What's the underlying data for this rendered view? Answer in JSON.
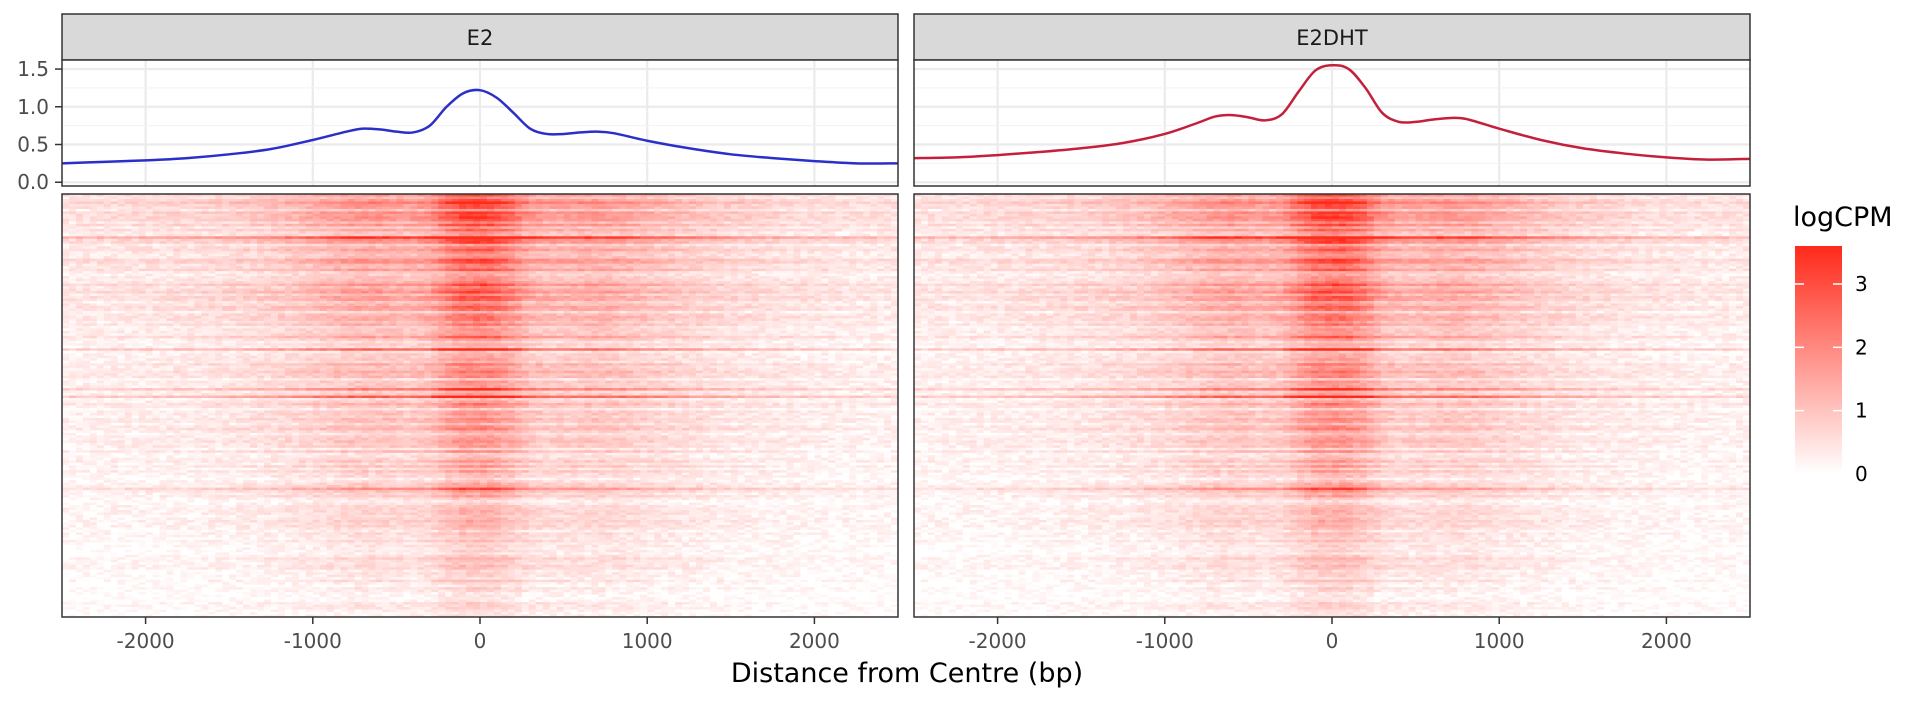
{
  "chart_data": {
    "type": "line",
    "panels": [
      {
        "label": "E2",
        "color": "#2b2fc9",
        "x": [
          -2500,
          -2250,
          -2000,
          -1750,
          -1500,
          -1250,
          -1000,
          -800,
          -700,
          -600,
          -500,
          -400,
          -300,
          -200,
          -100,
          0,
          100,
          200,
          300,
          400,
          500,
          600,
          700,
          800,
          1000,
          1250,
          1500,
          1750,
          2000,
          2250,
          2500
        ],
        "y": [
          0.25,
          0.27,
          0.29,
          0.32,
          0.37,
          0.44,
          0.56,
          0.67,
          0.71,
          0.7,
          0.67,
          0.66,
          0.75,
          1.0,
          1.18,
          1.22,
          1.12,
          0.92,
          0.71,
          0.64,
          0.64,
          0.66,
          0.67,
          0.65,
          0.55,
          0.45,
          0.37,
          0.32,
          0.28,
          0.25,
          0.25
        ]
      },
      {
        "label": "E2DHT",
        "color": "#c4203b",
        "x": [
          -2500,
          -2250,
          -2000,
          -1750,
          -1500,
          -1250,
          -1000,
          -800,
          -700,
          -600,
          -500,
          -400,
          -300,
          -200,
          -100,
          0,
          100,
          200,
          300,
          400,
          500,
          600,
          700,
          800,
          1000,
          1250,
          1500,
          1750,
          2000,
          2250,
          2500
        ],
        "y": [
          0.32,
          0.33,
          0.36,
          0.4,
          0.45,
          0.52,
          0.64,
          0.79,
          0.87,
          0.89,
          0.86,
          0.82,
          0.9,
          1.2,
          1.48,
          1.55,
          1.5,
          1.25,
          0.92,
          0.8,
          0.8,
          0.83,
          0.85,
          0.84,
          0.71,
          0.56,
          0.45,
          0.38,
          0.33,
          0.3,
          0.31
        ]
      }
    ],
    "x_ticks": [
      -2000,
      -1000,
      0,
      1000,
      2000
    ],
    "x_tick_labels": [
      "-2000",
      "-1000",
      "0",
      "1000",
      "2000"
    ],
    "xlim": [
      -2500,
      2500
    ],
    "profile_y_ticks": [
      0.0,
      0.5,
      1.0,
      1.5
    ],
    "profile_y_tick_labels": [
      "0.0",
      "0.5",
      "1.0",
      "1.5"
    ],
    "profile_ylim": [
      -0.05,
      1.62
    ],
    "xlabel": "Distance from Centre (bp)",
    "heatmap": {
      "value_name": "logCPM",
      "scale_min": 0,
      "scale_max": 3.6,
      "low_color": "#ffffff",
      "high_color": "#ff2a1a",
      "legend_ticks": [
        0,
        1,
        2,
        3
      ],
      "legend_tick_labels": [
        "0",
        "1",
        "2",
        "3"
      ]
    },
    "grid": true,
    "legend_position": "right"
  }
}
